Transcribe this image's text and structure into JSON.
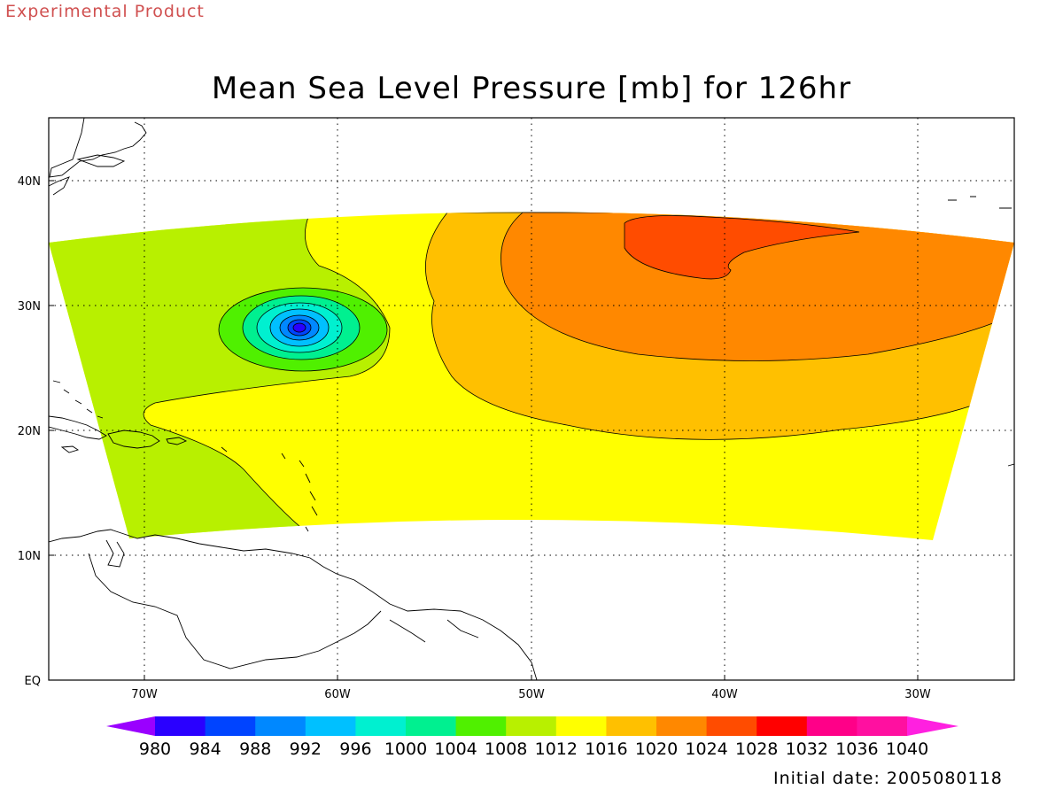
{
  "header": {
    "product_label": "Experimental Product",
    "title": "Mean Sea Level Pressure [mb] for 126hr"
  },
  "footer": {
    "initial_date": "Initial date: 2005080118"
  },
  "map": {
    "lon_ticks": [
      {
        "value": -70,
        "label": "70W"
      },
      {
        "value": -60,
        "label": "60W"
      },
      {
        "value": -50,
        "label": "50W"
      },
      {
        "value": -40,
        "label": "40W"
      },
      {
        "value": -30,
        "label": "30W"
      }
    ],
    "lat_ticks": [
      {
        "value": 40,
        "label": "40N"
      },
      {
        "value": 30,
        "label": "30N"
      },
      {
        "value": 20,
        "label": "20N"
      },
      {
        "value": 10,
        "label": "10N"
      },
      {
        "value": 0,
        "label": "EQ"
      }
    ],
    "lon_range": [
      -75,
      -25
    ],
    "lat_range": [
      0,
      45
    ],
    "grid": "dotted",
    "low_center": {
      "lon": -62,
      "lat": 28.5
    }
  },
  "colorbar": {
    "labels": [
      "980",
      "984",
      "988",
      "992",
      "996",
      "1000",
      "1004",
      "1008",
      "1012",
      "1016",
      "1020",
      "1024",
      "1028",
      "1032",
      "1036",
      "1040"
    ],
    "colors": [
      "#9a00ff",
      "#2a00ff",
      "#0044ff",
      "#0088ff",
      "#00c0ff",
      "#00f0d0",
      "#00f090",
      "#50f000",
      "#b8f000",
      "#ffff00",
      "#ffc000",
      "#ff8800",
      "#ff4c00",
      "#ff0000",
      "#ff0088",
      "#ff10a0",
      "#ff20e0"
    ]
  }
}
